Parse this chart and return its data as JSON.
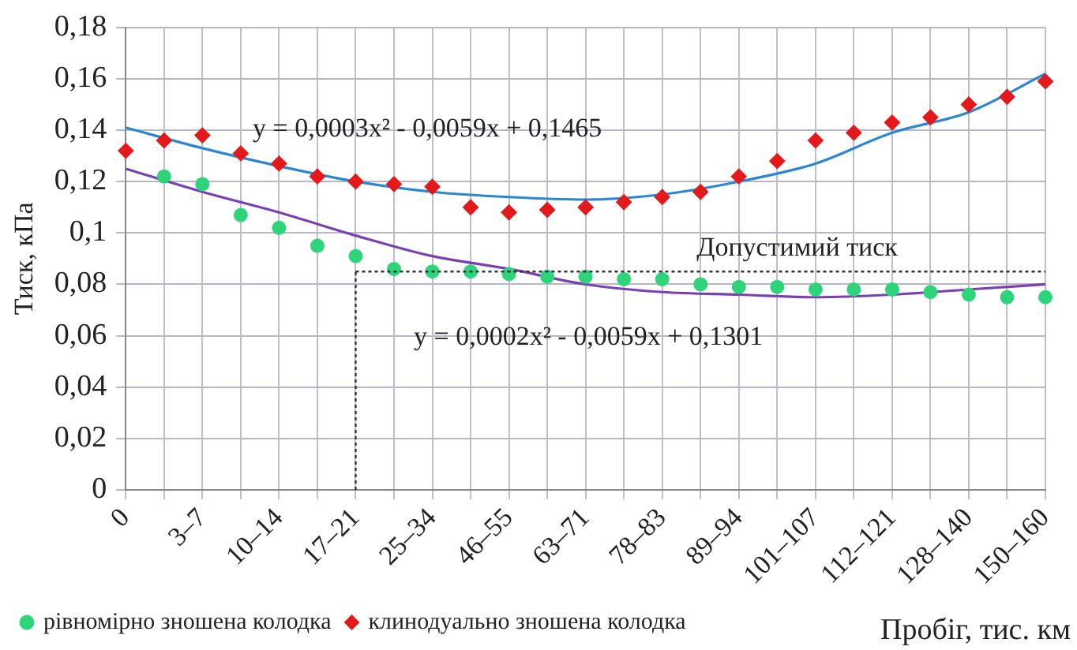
{
  "chart_data": {
    "type": "scatter",
    "ylabel": "Тиск, кПа",
    "xlabel": "Пробіг, тис. км",
    "categories": [
      "0",
      null,
      "3–7",
      null,
      "10–14",
      null,
      "17–21",
      null,
      "25–34",
      null,
      "46–55",
      null,
      "63–71",
      null,
      "78–83",
      null,
      "89–94",
      null,
      "101–107",
      null,
      "112–121",
      null,
      "128–140",
      null,
      "150–160"
    ],
    "ylim": [
      0,
      0.18
    ],
    "yticks": [
      {
        "value": 0,
        "label": "0"
      },
      {
        "value": 0.02,
        "label": "0,02"
      },
      {
        "value": 0.04,
        "label": "0,04"
      },
      {
        "value": 0.06,
        "label": "0,06"
      },
      {
        "value": 0.08,
        "label": "0,08"
      },
      {
        "value": 0.1,
        "label": "0,1"
      },
      {
        "value": 0.12,
        "label": "0,12"
      },
      {
        "value": 0.14,
        "label": "0,14"
      },
      {
        "value": 0.16,
        "label": "0,16"
      },
      {
        "value": 0.18,
        "label": "0,18"
      }
    ],
    "grid": true,
    "legend": "bottom left",
    "series": [
      {
        "name": "рівномірно зношена колодка",
        "type": "scatter",
        "marker": "circle",
        "color": "#2ed47a",
        "values": [
          null,
          0.122,
          0.119,
          0.107,
          0.102,
          0.095,
          0.091,
          0.086,
          0.085,
          0.085,
          0.084,
          0.083,
          0.083,
          0.082,
          0.082,
          0.08,
          0.079,
          0.079,
          0.078,
          0.078,
          0.078,
          0.077,
          0.076,
          0.075,
          0.075
        ]
      },
      {
        "name": "клинодуально зношена колодка",
        "type": "scatter",
        "marker": "diamond",
        "color": "#e3191c",
        "values": [
          0.132,
          0.136,
          0.138,
          0.131,
          0.127,
          0.122,
          0.12,
          0.119,
          0.118,
          0.11,
          0.108,
          0.109,
          0.11,
          0.112,
          0.114,
          0.116,
          0.122,
          0.128,
          0.136,
          0.139,
          0.143,
          0.145,
          0.15,
          0.153,
          0.159
        ]
      },
      {
        "type": "line",
        "marker": "none",
        "color": "#2b86d4",
        "values": [
          0.141,
          null,
          0.133,
          null,
          0.126,
          null,
          0.12,
          null,
          0.116,
          null,
          0.114,
          null,
          0.113,
          null,
          0.115,
          null,
          0.12,
          null,
          0.127,
          null,
          0.139,
          null,
          0.147,
          null,
          0.162
        ]
      },
      {
        "type": "line",
        "marker": "none",
        "color": "#7b3fb5",
        "values": [
          0.125,
          null,
          0.116,
          null,
          0.108,
          null,
          0.099,
          null,
          0.091,
          null,
          0.086,
          null,
          0.08,
          null,
          0.077,
          null,
          0.076,
          null,
          0.075,
          null,
          0.076,
          null,
          0.078,
          null,
          0.08
        ]
      }
    ],
    "ref_lines": [
      {
        "axis": "y",
        "value": 0.085,
        "label": "Допустимий тиск",
        "color": "#333333",
        "line_style": "dotted"
      },
      {
        "axis": "x",
        "value": "17–21",
        "color": "#333333",
        "line_style": "dotted"
      }
    ],
    "annotations": [
      "y = 0,0003x² - 0,0059x + 0,1465",
      "y = 0,0002x² - 0,0059x + 0,1301"
    ]
  }
}
